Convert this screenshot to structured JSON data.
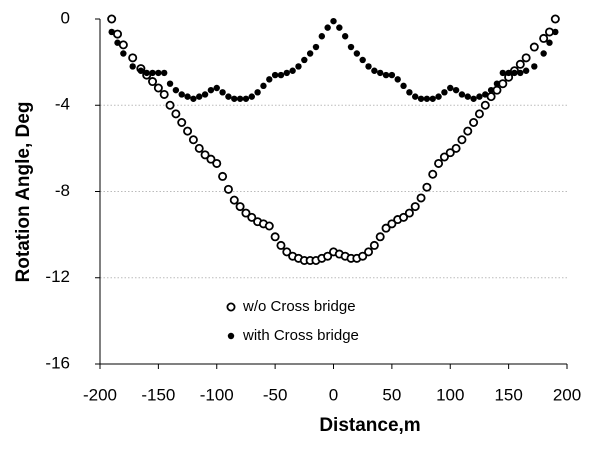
{
  "chart_data": {
    "type": "scatter",
    "xlabel": "Distance,m",
    "ylabel": "Rotation Angle, Deg",
    "x": [
      -190,
      -185,
      -180,
      -172,
      -165,
      -160,
      -155,
      -150,
      -145,
      -140,
      -135,
      -130,
      -125,
      -120,
      -115,
      -110,
      -105,
      -100,
      -95,
      -90,
      -85,
      -80,
      -75,
      -70,
      -65,
      -60,
      -55,
      -50,
      -45,
      -40,
      -35,
      -30,
      -25,
      -20,
      -15,
      -10,
      -5,
      0,
      5,
      10,
      15,
      20,
      25,
      30,
      35,
      40,
      45,
      50,
      55,
      60,
      65,
      70,
      75,
      80,
      85,
      90,
      95,
      100,
      105,
      110,
      115,
      120,
      125,
      130,
      135,
      140,
      145,
      150,
      155,
      160,
      165,
      172,
      180,
      185,
      190
    ],
    "series": [
      {
        "name": "w/o Cross bridge",
        "color": "#000000",
        "marker": "open",
        "values": [
          0,
          -0.7,
          -1.2,
          -1.8,
          -2.3,
          -2.6,
          -2.9,
          -3.2,
          -3.5,
          -4.0,
          -4.4,
          -4.8,
          -5.2,
          -5.6,
          -6.0,
          -6.3,
          -6.5,
          -6.7,
          -7.3,
          -7.9,
          -8.4,
          -8.7,
          -9.0,
          -9.2,
          -9.4,
          -9.5,
          -9.6,
          -10.1,
          -10.5,
          -10.8,
          -11.0,
          -11.1,
          -11.2,
          -11.2,
          -11.2,
          -11.1,
          -11.0,
          -10.8,
          -10.9,
          -11.0,
          -11.1,
          -11.1,
          -11.0,
          -10.8,
          -10.5,
          -10.1,
          -9.7,
          -9.5,
          -9.3,
          -9.2,
          -9.0,
          -8.7,
          -8.3,
          -7.8,
          -7.2,
          -6.7,
          -6.4,
          -6.2,
          -6.0,
          -5.6,
          -5.2,
          -4.8,
          -4.4,
          -4.0,
          -3.6,
          -3.3,
          -3.0,
          -2.7,
          -2.4,
          -2.1,
          -1.8,
          -1.3,
          -0.9,
          -0.6,
          0
        ]
      },
      {
        "name": "with Cross bridge",
        "color": "#000000",
        "marker": "filled",
        "values": [
          -0.6,
          -1.1,
          -1.6,
          -2.2,
          -2.4,
          -2.5,
          -2.5,
          -2.5,
          -2.5,
          -3.0,
          -3.3,
          -3.5,
          -3.6,
          -3.7,
          -3.6,
          -3.5,
          -3.3,
          -3.2,
          -3.4,
          -3.6,
          -3.7,
          -3.7,
          -3.7,
          -3.6,
          -3.4,
          -3.1,
          -2.8,
          -2.6,
          -2.6,
          -2.5,
          -2.4,
          -2.2,
          -1.9,
          -1.6,
          -1.3,
          -0.8,
          -0.4,
          -0.1,
          -0.4,
          -0.8,
          -1.3,
          -1.6,
          -1.9,
          -2.2,
          -2.4,
          -2.5,
          -2.6,
          -2.6,
          -2.8,
          -3.1,
          -3.4,
          -3.6,
          -3.7,
          -3.7,
          -3.7,
          -3.6,
          -3.4,
          -3.2,
          -3.3,
          -3.5,
          -3.6,
          -3.7,
          -3.6,
          -3.5,
          -3.3,
          -3.0,
          -2.5,
          -2.5,
          -2.5,
          -2.5,
          -2.4,
          -2.2,
          -1.6,
          -1.1,
          -0.6
        ]
      }
    ],
    "xlim": [
      -200,
      200
    ],
    "xticks": [
      -200,
      -150,
      -100,
      -50,
      0,
      50,
      100,
      150,
      200
    ],
    "ylim": [
      -16,
      0
    ],
    "yticks": [
      0,
      -4,
      -8,
      -12,
      -16
    ],
    "grid": true,
    "legend": "bottom"
  }
}
